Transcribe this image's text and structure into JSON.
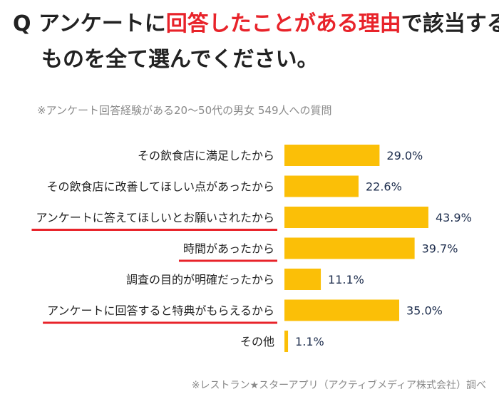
{
  "title": {
    "prefix": "Q アンケートに",
    "highlight": "回答したことがある理由",
    "suffix": "で該当する",
    "line2": "ものを全て選んでください。"
  },
  "subtitle": "※アンケート回答経験がある20～50代の男女 549人への質問",
  "source": "※レストラン★スターアプリ（アクティブメディア株式会社）調べ",
  "colors": {
    "bar": "#fbbf07",
    "accent": "#e8232a",
    "value_text": "#1c2c4c"
  },
  "chart_data": {
    "type": "bar",
    "orientation": "horizontal",
    "unit": "%",
    "categories": [
      "その飲食店に満足したから",
      "その飲食店に改善してほしい点があったから",
      "アンケートに答えてほしいとお願いされたから",
      "時間があったから",
      "調査の目的が明確だったから",
      "アンケートに回答すると特典がもらえるから",
      "その他"
    ],
    "values": [
      29.0,
      22.6,
      43.9,
      39.7,
      11.1,
      35.0,
      1.1
    ],
    "value_labels": [
      "29.0%",
      "22.6%",
      "43.9%",
      "39.7%",
      "11.1%",
      "35.0%",
      "1.1%"
    ],
    "highlighted": [
      false,
      false,
      true,
      true,
      false,
      true,
      false
    ],
    "grid": false,
    "legend": "none"
  }
}
